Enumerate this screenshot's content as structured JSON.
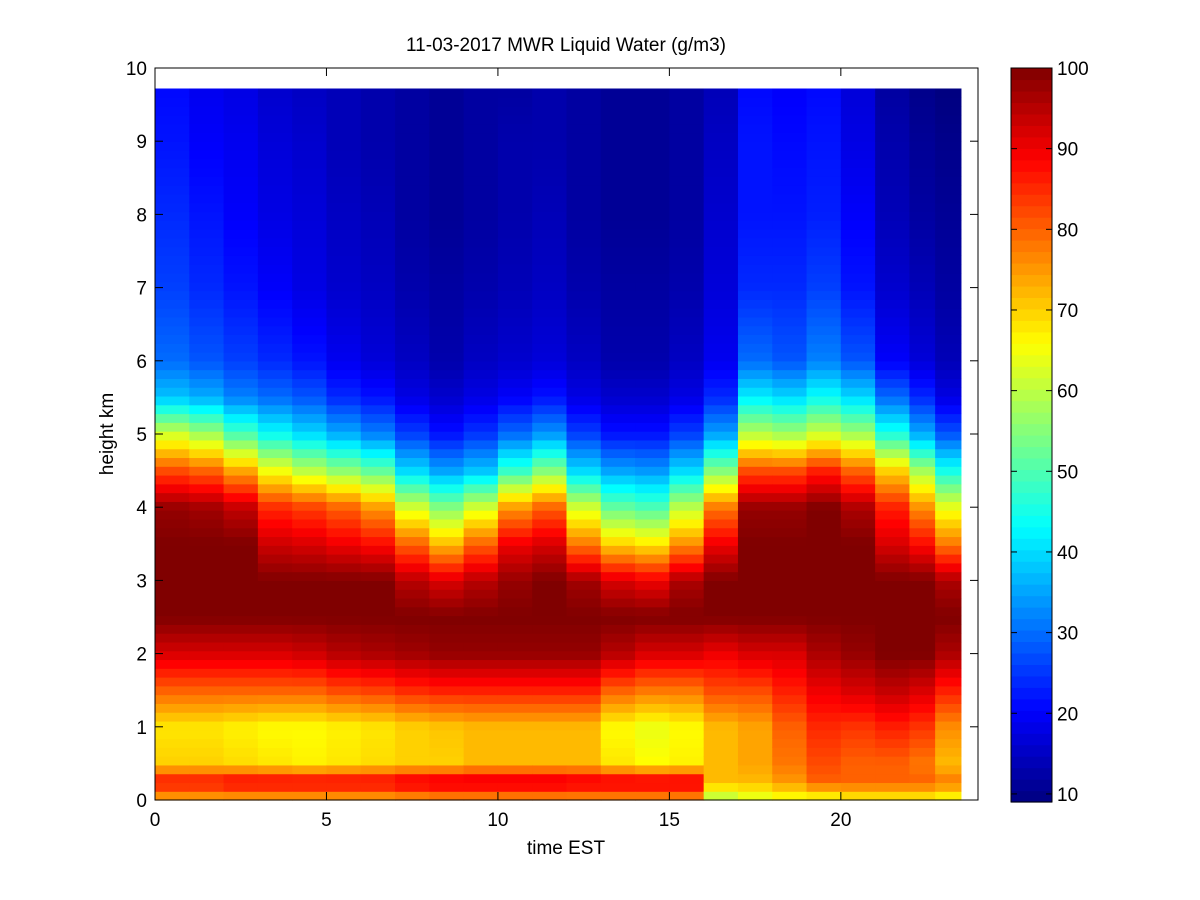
{
  "chart_data": {
    "type": "heatmap",
    "title": "11-03-2017 MWR Liquid Water (g/m3)",
    "xlabel": "time EST",
    "ylabel": "height km",
    "xlim": [
      0,
      24
    ],
    "ylim": [
      0,
      10
    ],
    "xticks": [
      "0",
      "5",
      "10",
      "15",
      "20"
    ],
    "yticks": [
      "0",
      "1",
      "2",
      "3",
      "4",
      "5",
      "6",
      "7",
      "8",
      "9",
      "10"
    ],
    "colorbar": {
      "colormap": "jet",
      "range": [
        9,
        100
      ],
      "ticks": [
        "10",
        "20",
        "30",
        "40",
        "50",
        "60",
        "70",
        "80",
        "90",
        "100"
      ]
    },
    "x_centers": [
      0.5,
      1.5,
      2.5,
      3.5,
      4.5,
      5.5,
      6.5,
      7.5,
      8.5,
      9.5,
      10.5,
      11.5,
      12.5,
      13.5,
      14.5,
      15.5,
      16.5,
      17.5,
      18.5,
      19.5,
      20.5,
      21.5,
      22.5,
      23.0
    ],
    "x_max": 23.5,
    "y_top": 9.75,
    "height_profile_km": [
      0,
      0.25,
      0.5,
      1.0,
      1.5,
      2.0,
      2.5,
      3.0,
      3.5,
      4.0,
      4.5,
      5.0,
      5.5,
      6.0,
      7.0,
      8.0,
      9.0,
      9.75
    ],
    "columns": [
      [
        72,
        88,
        70,
        68,
        80,
        92,
        100,
        100,
        100,
        98,
        82,
        62,
        38,
        30,
        26,
        24,
        22,
        21
      ],
      [
        72,
        88,
        70,
        68,
        80,
        92,
        100,
        100,
        100,
        97,
        80,
        58,
        36,
        28,
        24,
        22,
        20,
        19
      ],
      [
        72,
        90,
        69,
        67,
        80,
        92,
        100,
        100,
        100,
        94,
        74,
        50,
        32,
        26,
        22,
        20,
        19,
        18
      ],
      [
        72,
        90,
        68,
        66,
        80,
        92,
        100,
        100,
        93,
        85,
        65,
        44,
        30,
        24,
        20,
        18,
        17,
        16
      ],
      [
        72,
        90,
        67,
        66,
        80,
        93,
        100,
        100,
        92,
        83,
        60,
        40,
        28,
        22,
        18,
        17,
        16,
        15
      ],
      [
        72,
        90,
        68,
        67,
        82,
        95,
        100,
        100,
        90,
        80,
        56,
        36,
        24,
        19,
        16,
        15,
        14,
        14
      ],
      [
        72,
        90,
        69,
        68,
        83,
        96,
        100,
        100,
        88,
        75,
        52,
        32,
        22,
        17,
        15,
        14,
        13,
        13
      ],
      [
        73,
        92,
        70,
        70,
        85,
        97,
        100,
        95,
        80,
        62,
        40,
        26,
        18,
        15,
        13,
        12,
        12,
        12
      ],
      [
        74,
        93,
        70,
        71,
        86,
        98,
        100,
        92,
        72,
        55,
        35,
        22,
        16,
        13,
        12,
        11,
        11,
        11
      ],
      [
        74,
        93,
        72,
        72,
        86,
        98,
        100,
        95,
        80,
        62,
        38,
        25,
        18,
        15,
        13,
        12,
        12,
        12
      ],
      [
        74,
        93,
        72,
        72,
        86,
        98,
        100,
        98,
        90,
        75,
        48,
        30,
        20,
        16,
        14,
        13,
        13,
        12
      ],
      [
        74,
        93,
        72,
        72,
        86,
        98,
        100,
        100,
        92,
        80,
        55,
        34,
        22,
        17,
        15,
        14,
        13,
        13
      ],
      [
        74,
        92,
        72,
        72,
        86,
        98,
        100,
        97,
        78,
        62,
        40,
        26,
        18,
        15,
        13,
        12,
        12,
        12
      ],
      [
        74,
        92,
        68,
        66,
        80,
        95,
        100,
        92,
        70,
        52,
        35,
        22,
        16,
        13,
        12,
        11,
        11,
        11
      ],
      [
        74,
        92,
        66,
        64,
        78,
        92,
        100,
        90,
        68,
        50,
        34,
        22,
        16,
        13,
        12,
        11,
        11,
        11
      ],
      [
        74,
        92,
        67,
        66,
        78,
        92,
        100,
        96,
        76,
        60,
        40,
        26,
        18,
        15,
        13,
        12,
        12,
        12
      ],
      [
        58,
        72,
        72,
        72,
        82,
        90,
        100,
        100,
        90,
        78,
        55,
        35,
        24,
        19,
        17,
        16,
        15,
        14
      ],
      [
        62,
        72,
        74,
        74,
        82,
        92,
        100,
        100,
        100,
        98,
        82,
        60,
        42,
        30,
        24,
        22,
        22,
        21
      ],
      [
        64,
        75,
        78,
        80,
        86,
        92,
        100,
        100,
        100,
        98,
        82,
        58,
        40,
        28,
        24,
        22,
        21,
        20
      ],
      [
        64,
        80,
        82,
        85,
        90,
        96,
        100,
        100,
        100,
        100,
        86,
        62,
        44,
        32,
        26,
        23,
        22,
        21
      ],
      [
        66,
        80,
        80,
        84,
        92,
        98,
        100,
        100,
        100,
        96,
        80,
        58,
        40,
        28,
        22,
        20,
        18,
        17
      ],
      [
        66,
        80,
        80,
        86,
        94,
        100,
        100,
        100,
        92,
        86,
        70,
        46,
        30,
        20,
        16,
        14,
        13,
        12
      ],
      [
        66,
        80,
        78,
        84,
        92,
        100,
        100,
        100,
        88,
        76,
        58,
        36,
        24,
        17,
        14,
        12,
        11,
        10
      ],
      [
        64,
        78,
        72,
        76,
        86,
        96,
        100,
        96,
        78,
        64,
        45,
        28,
        18,
        14,
        12,
        11,
        10,
        9
      ]
    ]
  }
}
